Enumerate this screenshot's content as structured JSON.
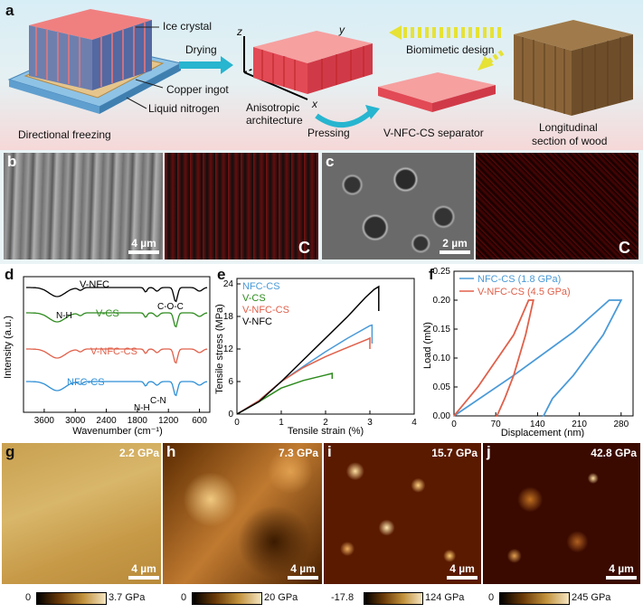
{
  "panel_a": {
    "label": "a",
    "ice_crystal": "Ice crystal",
    "copper_ingot": "Copper ingot",
    "liquid_nitrogen": "Liquid nitrogen",
    "directional_freezing": "Directional freezing",
    "drying": "Drying",
    "axis_z": "z",
    "axis_y": "y",
    "axis_x": "x",
    "anisotropic_1": "Anisotropic",
    "anisotropic_2": "architecture",
    "biomimetic": "Biomimetic design",
    "pressing": "Pressing",
    "separator": "V-NFC-CS separator",
    "wood_1": "Longitudinal",
    "wood_2": "section of wood"
  },
  "panel_b": {
    "label": "b",
    "scale": "4 µm",
    "element": "C"
  },
  "panel_c": {
    "label": "c",
    "scale": "2 µm",
    "element": "C"
  },
  "chart_data": [
    {
      "panel": "d",
      "type": "line",
      "xlabel": "Wavenumber (cm⁻¹)",
      "ylabel": "Intensity (a.u.)",
      "xlim": [
        4000,
        400
      ],
      "xticks": [
        "3600",
        "3000",
        "2400",
        "1800",
        "1200",
        "600"
      ],
      "series": [
        {
          "name": "V-NFC",
          "color": "#000000"
        },
        {
          "name": "V-CS",
          "color": "#2e8b1e"
        },
        {
          "name": "V-NFC-CS",
          "color": "#e0604a"
        },
        {
          "name": "NFC-CS",
          "color": "#2f8fd6"
        }
      ],
      "annotations": [
        "N-H",
        "C-O-C",
        "N-H",
        "C-N"
      ]
    },
    {
      "panel": "e",
      "type": "line",
      "xlabel": "Tensile strain (%)",
      "ylabel": "Tensile stress (MPa)",
      "xlim": [
        0,
        4
      ],
      "ylim": [
        0,
        25
      ],
      "xticks": [
        "0",
        "1",
        "2",
        "3",
        "4"
      ],
      "yticks": [
        "0",
        "6",
        "12",
        "18",
        "24"
      ],
      "series": [
        {
          "name": "NFC-CS",
          "color": "#4a9ad8",
          "x": [
            0,
            0.5,
            1,
            1.5,
            2,
            2.5,
            3.0,
            3.05,
            3.05
          ],
          "y": [
            0,
            2.5,
            6,
            8.8,
            11.5,
            14,
            16.3,
            16.4,
            13
          ]
        },
        {
          "name": "V-CS",
          "color": "#2e8b1e",
          "x": [
            0,
            0.5,
            1,
            1.5,
            2,
            2.15,
            2.15
          ],
          "y": [
            0,
            2.3,
            4.8,
            6.2,
            7.2,
            7.5,
            6.5
          ]
        },
        {
          "name": "V-NFC-CS",
          "color": "#e0604a",
          "x": [
            0,
            0.5,
            1,
            1.5,
            2,
            2.5,
            2.95,
            3.0,
            3.0
          ],
          "y": [
            0,
            2.5,
            6,
            8.6,
            10.6,
            12.3,
            13.8,
            14,
            12
          ]
        },
        {
          "name": "V-NFC",
          "color": "#000000",
          "x": [
            0,
            0.5,
            1,
            1.5,
            2,
            2.5,
            2.9,
            3.1,
            3.2,
            3.2
          ],
          "y": [
            0,
            2.3,
            6,
            10,
            14,
            18,
            21.5,
            23,
            23.5,
            19
          ]
        }
      ]
    },
    {
      "panel": "f",
      "type": "line",
      "xlabel": "Displacement (nm)",
      "ylabel": "Load (mN)",
      "xlim": [
        0,
        300
      ],
      "ylim": [
        0,
        0.25
      ],
      "xticks": [
        "0",
        "70",
        "140",
        "210",
        "280"
      ],
      "yticks": [
        "0.00",
        "0.05",
        "0.10",
        "0.15",
        "0.20",
        "0.25"
      ],
      "series": [
        {
          "name": "NFC-CS (1.8 GPa)",
          "color": "#4a9ad8",
          "x": [
            0,
            100,
            200,
            260,
            280,
            250,
            200,
            165,
            150,
            148
          ],
          "y": [
            0,
            0.07,
            0.145,
            0.2,
            0.2,
            0.14,
            0.07,
            0.03,
            0.0,
            0.0
          ]
        },
        {
          "name": "V-NFC-CS (4.5 GPa)",
          "color": "#e0604a",
          "x": [
            0,
            40,
            60,
            80,
            100,
            125,
            133,
            120,
            100,
            85,
            72,
            70
          ],
          "y": [
            0,
            0.05,
            0.08,
            0.11,
            0.14,
            0.2,
            0.2,
            0.14,
            0.07,
            0.03,
            0.0,
            0.0
          ]
        }
      ]
    }
  ],
  "panel_d": {
    "label": "d"
  },
  "panel_e": {
    "label": "e"
  },
  "panel_f": {
    "label": "f"
  },
  "maps": [
    {
      "label": "g",
      "value": "2.2 GPa",
      "scale": "4 µm",
      "cmin": "0",
      "cmax": "3.7 GPa"
    },
    {
      "label": "h",
      "value": "7.3 GPa",
      "scale": "4 µm",
      "cmin": "0",
      "cmax": "20 GPa"
    },
    {
      "label": "i",
      "value": "15.7 GPa",
      "scale": "4 µm",
      "cmin": "-17.8",
      "cmax": "124 GPa"
    },
    {
      "label": "j",
      "value": "42.8 GPa",
      "scale": "4 µm",
      "cmin": "0",
      "cmax": "245 GPa"
    }
  ]
}
